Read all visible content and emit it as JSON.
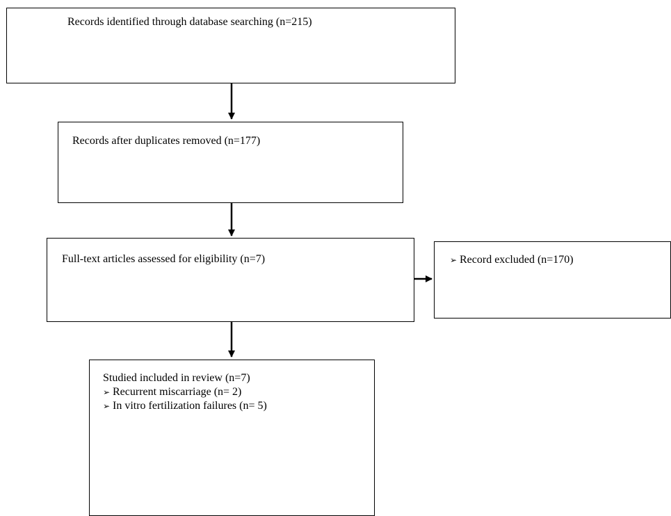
{
  "flowchart": {
    "identified": {
      "text": "Records identified through database searching (n=215)"
    },
    "after_duplicates": {
      "text": "Records after duplicates removed (n=177)"
    },
    "full_text": {
      "text": "Full-text articles assessed for eligibility (n=7)"
    },
    "excluded": {
      "bullet": "➢",
      "text": "Record excluded (n=170)"
    },
    "included": {
      "title": "Studied included in review (n=7)",
      "items": [
        {
          "bullet": "➢",
          "text": "Recurrent miscarriage (n= 2)"
        },
        {
          "bullet": "➢",
          "text": "In vitro fertilization failures (n= 5)"
        }
      ]
    }
  }
}
